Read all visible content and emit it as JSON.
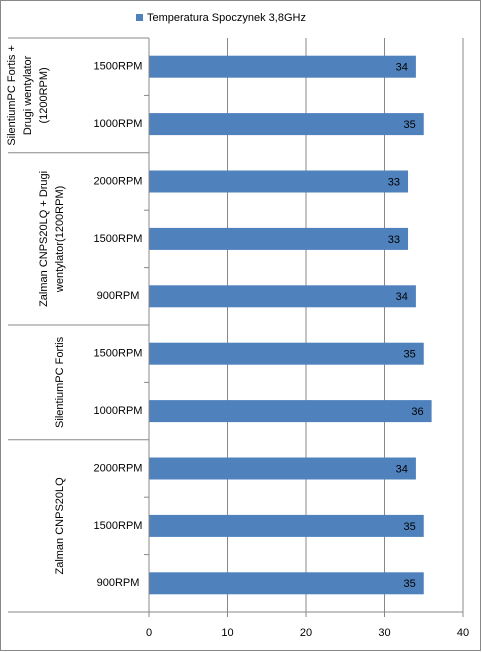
{
  "chart_data": {
    "type": "hbar",
    "series_name": "Temperatura Spoczynek  3,8GHz",
    "color": "#4f81bd",
    "xlim": [
      0,
      40
    ],
    "xticks": [
      0,
      10,
      20,
      30,
      40
    ],
    "grid": true,
    "groups": [
      {
        "label": [
          "SilentiumPC Fortis +",
          "Drugi wentylator",
          "(1200RPM)"
        ],
        "categories": [
          "1500RPM",
          "1000RPM"
        ],
        "values": [
          34,
          35
        ]
      },
      {
        "label": [
          "Zalman CNPS20LQ + Drugi",
          "wentylator(1200RPM)"
        ],
        "categories": [
          "2000RPM",
          "1500RPM",
          "900RPM"
        ],
        "values": [
          33,
          33,
          34
        ]
      },
      {
        "label": [
          "SilentiumPC Fortis"
        ],
        "categories": [
          "1500RPM",
          "1000RPM"
        ],
        "values": [
          35,
          36
        ]
      },
      {
        "label": [
          "Zalman CNPS20LQ"
        ],
        "categories": [
          "2000RPM",
          "1500RPM",
          "900RPM"
        ],
        "values": [
          34,
          35,
          35
        ]
      }
    ]
  }
}
